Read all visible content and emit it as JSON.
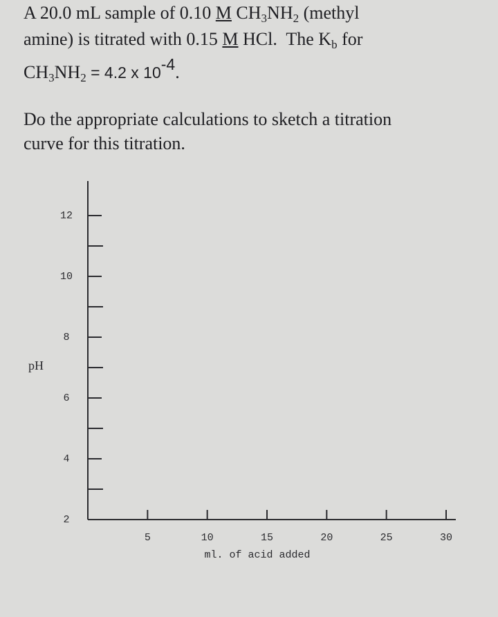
{
  "problem": [
    [
      "A 20.0 mL sample of 0.10 ",
      "M",
      " CH",
      "3",
      "NH",
      "2",
      " (methyl"
    ],
    [
      "amine) is titrated with 0.15 ",
      "M",
      " HCl.  The K",
      "b",
      " for"
    ],
    [
      "CH",
      "3",
      "NH",
      "2",
      " = 4.2 x 10",
      "-4",
      "."
    ]
  ],
  "instruction": [
    "Do the appropriate calculations to sketch a titration",
    "curve for this titration."
  ],
  "graph": {
    "y_label": "pH",
    "x_label": "ml. of acid added",
    "ylim": [
      2,
      13
    ],
    "yticks": [
      2,
      4,
      6,
      8,
      10,
      12
    ],
    "yminorticks": [
      3,
      5,
      7,
      9,
      11
    ],
    "xlim": [
      0,
      30
    ],
    "xticks": [
      5,
      10,
      15,
      20,
      25,
      30
    ]
  }
}
